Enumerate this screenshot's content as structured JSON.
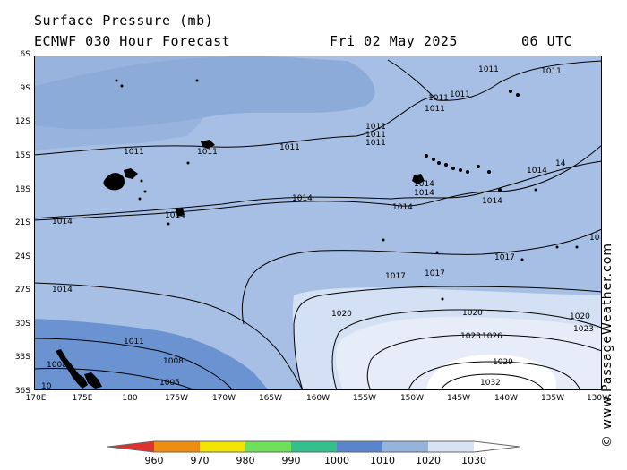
{
  "header": {
    "title": "Surface Pressure (mb)",
    "subtitle": "ECMWF 030 Hour Forecast",
    "date": "Fri 02 May 2025",
    "time": "06 UTC"
  },
  "y_axis_labels": [
    "6S",
    "9S",
    "12S",
    "15S",
    "18S",
    "21S",
    "24S",
    "27S",
    "30S",
    "33S",
    "36S"
  ],
  "x_axis_labels": [
    "170E",
    "175E",
    "180",
    "175W",
    "170W",
    "165W",
    "160W",
    "155W",
    "150W",
    "145W",
    "140W",
    "135W",
    "130W"
  ],
  "credit": "© www.PassageWeather.com",
  "legend": {
    "labels": [
      "960",
      "970",
      "980",
      "990",
      "1000",
      "1010",
      "1020",
      "1030"
    ],
    "colors": [
      "#e03030",
      "#f08c10",
      "#f2e600",
      "#6ee05a",
      "#33c08c",
      "#5a84cc",
      "#96b3dc",
      "#d8e2f4",
      "#ffffff"
    ]
  },
  "colors": {
    "field_1005_1010": "#6b93d2",
    "field_1010_1020": "#a7bfe4",
    "field_1020_1025": "#d4e0f3",
    "field_1025_1030": "#e6ecf8",
    "field_1030_plus": "#ffffff",
    "low_pressure_patch": "#8cabd9",
    "land": "#000000",
    "isobar": "#000000"
  },
  "isobar_labels": [
    "1011",
    "1011",
    "1011",
    "1011",
    "1011",
    "1011",
    "1011",
    "1011",
    "1011",
    "1011",
    "1011",
    "1011",
    "1014",
    "1014",
    "1014",
    "1014",
    "1014",
    "1014",
    "1014",
    "1014",
    "1014",
    "14",
    "10",
    "1017",
    "1017",
    "1017",
    "1020",
    "1020",
    "1020",
    "1023",
    "1023",
    "1026",
    "1029",
    "1032",
    "1008",
    "1008",
    "1005",
    "10"
  ]
}
